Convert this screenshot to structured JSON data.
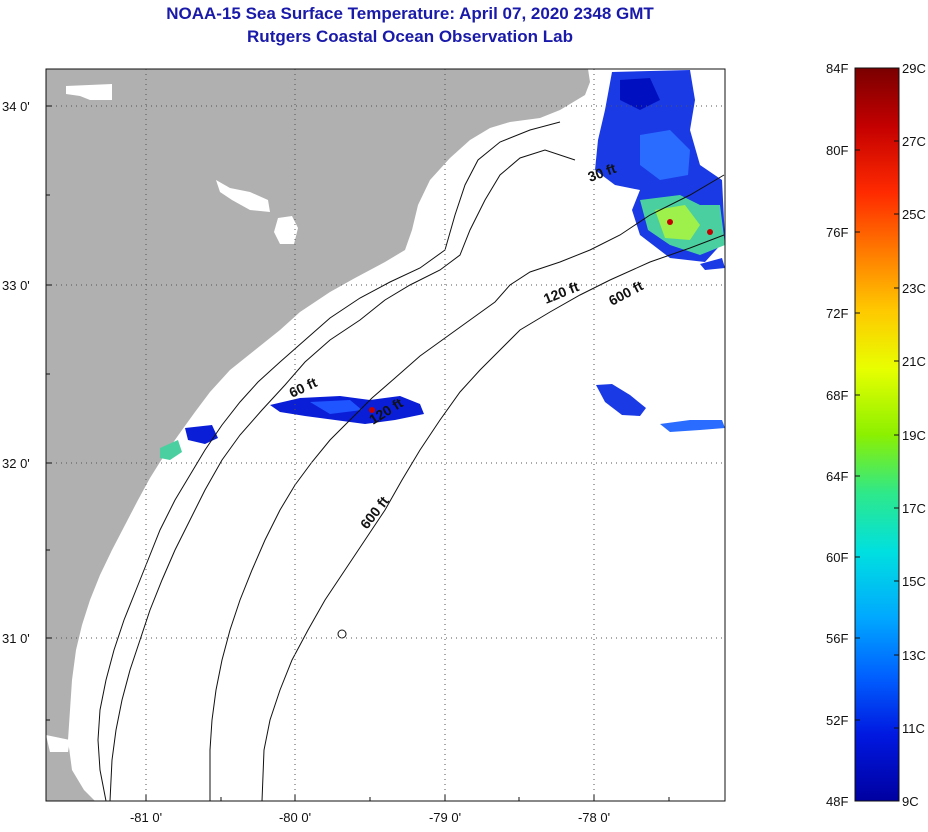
{
  "title": "NOAA-15 Sea Surface Temperature:  April 07, 2020 2348 GMT",
  "subtitle": "Rutgers Coastal Ocean Observation Lab",
  "map": {
    "lon_ticks": [
      "-81 0'",
      "-80 0'",
      "-79 0'",
      "-78 0'"
    ],
    "lat_ticks": [
      "34 0'",
      "33 0'",
      "32 0'",
      "31 0'"
    ],
    "land_color": "#b0b0b0",
    "ocean_color": "#ffffff",
    "contour_labels": [
      "30 ft",
      "120 ft",
      "600 ft",
      "60 ft",
      "120 ft",
      "600 ft"
    ]
  },
  "colorbar": {
    "fahrenheit_labels": [
      "84F",
      "80F",
      "76F",
      "72F",
      "68F",
      "64F",
      "60F",
      "56F",
      "52F",
      "48F"
    ],
    "celsius_labels": [
      "29C",
      "27C",
      "25C",
      "23C",
      "21C",
      "19C",
      "17C",
      "15C",
      "13C",
      "11C",
      "9C"
    ],
    "gradient_colors": [
      "#7a0000",
      "#c40000",
      "#ff2a00",
      "#ff7a00",
      "#ffc800",
      "#e8ff00",
      "#8cf000",
      "#2ee88a",
      "#00e0e0",
      "#00a8ff",
      "#0060ff",
      "#0018e0",
      "#0000a0"
    ]
  }
}
